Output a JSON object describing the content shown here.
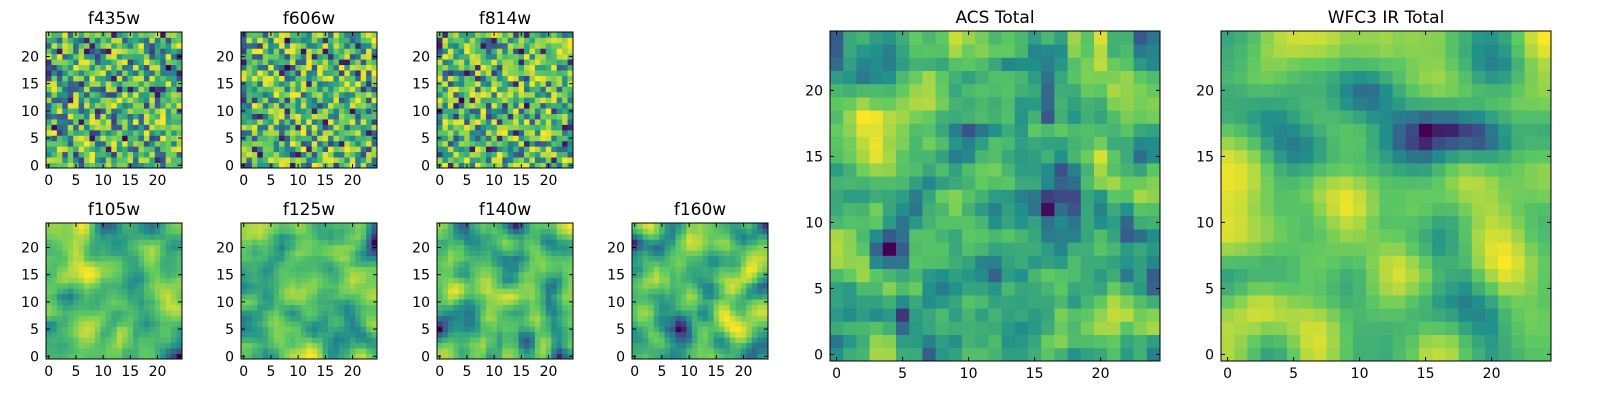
{
  "figure": {
    "colormap": "viridis",
    "colormap_stops": [
      "#440154",
      "#3b528b",
      "#21918c",
      "#5ec962",
      "#fde725"
    ]
  },
  "chart_data": [
    {
      "type": "heatmap",
      "title": "f435w",
      "grid_size": [
        25,
        25
      ],
      "xlim": [
        -0.5,
        24.5
      ],
      "ylim": [
        -0.5,
        24.5
      ],
      "xticks": [
        0,
        5,
        10,
        15,
        20
      ],
      "yticks": [
        0,
        5,
        10,
        15,
        20
      ],
      "seed": 11,
      "smooth": 0
    },
    {
      "type": "heatmap",
      "title": "f606w",
      "grid_size": [
        25,
        25
      ],
      "xlim": [
        -0.5,
        24.5
      ],
      "ylim": [
        -0.5,
        24.5
      ],
      "xticks": [
        0,
        5,
        10,
        15,
        20
      ],
      "yticks": [
        0,
        5,
        10,
        15,
        20
      ],
      "seed": 23,
      "smooth": 0
    },
    {
      "type": "heatmap",
      "title": "f814w",
      "grid_size": [
        25,
        25
      ],
      "xlim": [
        -0.5,
        24.5
      ],
      "ylim": [
        -0.5,
        24.5
      ],
      "xticks": [
        0,
        5,
        10,
        15,
        20
      ],
      "yticks": [
        0,
        5,
        10,
        15,
        20
      ],
      "seed": 37,
      "smooth": 0
    },
    {
      "type": "heatmap",
      "title": "f105w",
      "grid_size": [
        25,
        25
      ],
      "xlim": [
        -0.5,
        24.5
      ],
      "ylim": [
        -0.5,
        24.5
      ],
      "xticks": [
        0,
        5,
        10,
        15,
        20
      ],
      "yticks": [
        0,
        5,
        10,
        15,
        20
      ],
      "seed": 41,
      "smooth": 2
    },
    {
      "type": "heatmap",
      "title": "f125w",
      "grid_size": [
        25,
        25
      ],
      "xlim": [
        -0.5,
        24.5
      ],
      "ylim": [
        -0.5,
        24.5
      ],
      "xticks": [
        0,
        5,
        10,
        15,
        20
      ],
      "yticks": [
        0,
        5,
        10,
        15,
        20
      ],
      "seed": 53,
      "smooth": 2
    },
    {
      "type": "heatmap",
      "title": "f140w",
      "grid_size": [
        25,
        25
      ],
      "xlim": [
        -0.5,
        24.5
      ],
      "ylim": [
        -0.5,
        24.5
      ],
      "xticks": [
        0,
        5,
        10,
        15,
        20
      ],
      "yticks": [
        0,
        5,
        10,
        15,
        20
      ],
      "seed": 67,
      "smooth": 2
    },
    {
      "type": "heatmap",
      "title": "f160w",
      "grid_size": [
        25,
        25
      ],
      "xlim": [
        -0.5,
        24.5
      ],
      "ylim": [
        -0.5,
        24.5
      ],
      "xticks": [
        0,
        5,
        10,
        15,
        20
      ],
      "yticks": [
        0,
        5,
        10,
        15,
        20
      ],
      "seed": 79,
      "smooth": 2
    },
    {
      "type": "heatmap",
      "title": "ACS Total",
      "grid_size": [
        25,
        25
      ],
      "xlim": [
        -0.5,
        24.5
      ],
      "ylim": [
        -0.5,
        24.5
      ],
      "xticks": [
        0,
        5,
        10,
        15,
        20
      ],
      "yticks": [
        0,
        5,
        10,
        15,
        20
      ],
      "seed": 83,
      "smooth": 1
    },
    {
      "type": "heatmap",
      "title": "WFC3 IR Total",
      "grid_size": [
        25,
        25
      ],
      "xlim": [
        -0.5,
        24.5
      ],
      "ylim": [
        -0.5,
        24.5
      ],
      "xticks": [
        0,
        5,
        10,
        15,
        20
      ],
      "yticks": [
        0,
        5,
        10,
        15,
        20
      ],
      "seed": 97,
      "smooth": 3
    }
  ]
}
